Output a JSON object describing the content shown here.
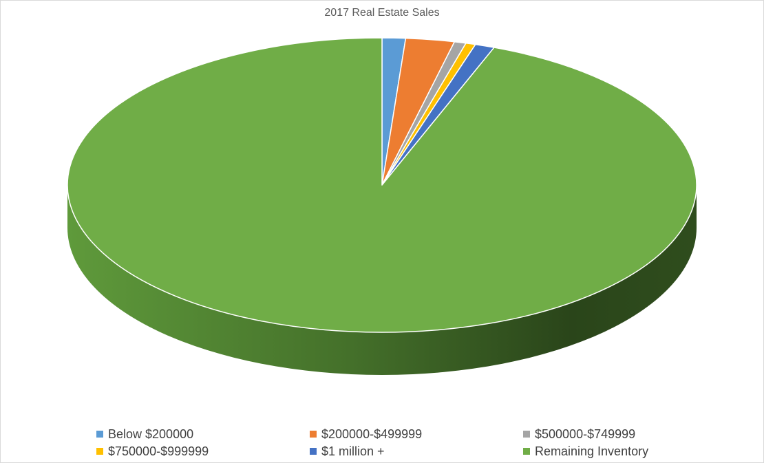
{
  "chart_data": {
    "type": "pie",
    "title": "2017 Real Estate Sales",
    "three_d": true,
    "legend_position": "bottom",
    "categories": [
      "Below $200000",
      "$200000-$499999",
      "$500000-$749999",
      "$750000-$999999",
      "$1 million +",
      "Remaining Inventory"
    ],
    "values": [
      1.2,
      2.5,
      0.6,
      0.5,
      1.0,
      94.2
    ],
    "colors": [
      "#5b9bd5",
      "#ed7d31",
      "#a5a5a5",
      "#ffc000",
      "#4472c4",
      "#70ad47"
    ]
  }
}
